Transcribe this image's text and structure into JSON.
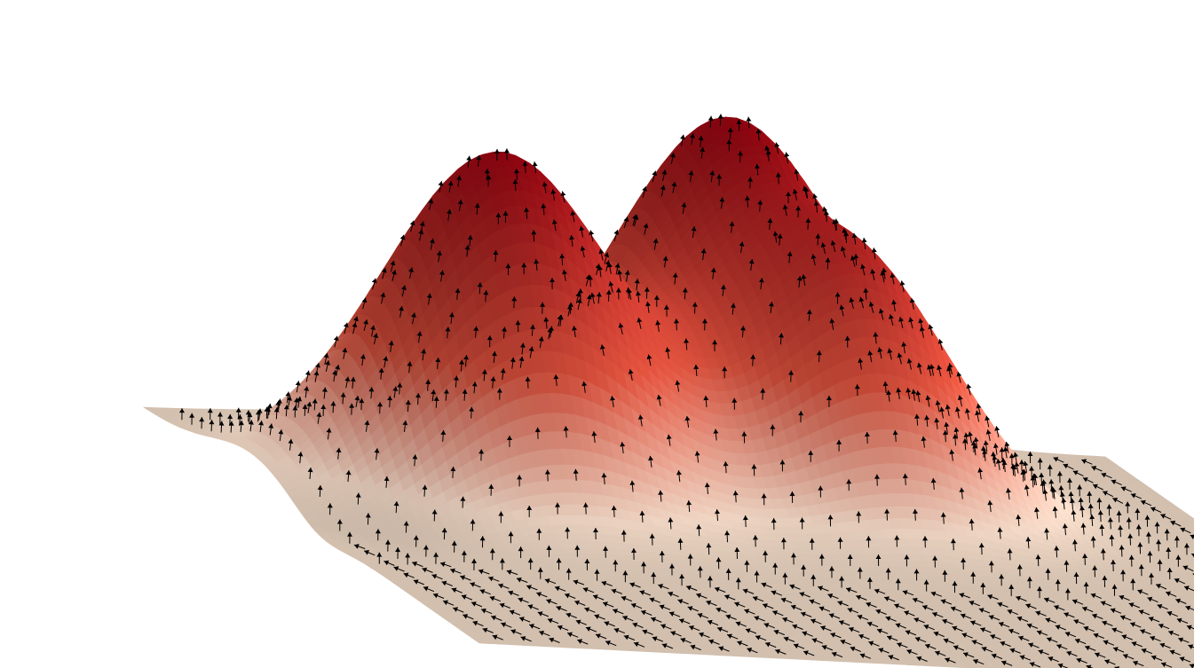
{
  "scene": {
    "kind": "surface-plot-3d",
    "background_color": "#ffffff",
    "surface": {
      "base_color": "#d2bfae",
      "low_color": "#f0d6c4",
      "mid_color": "#d9503c",
      "high_color": "#8c0510",
      "grid_lines": false
    },
    "peaks": [
      {
        "name": "left-peak",
        "relative_height": 1.0
      },
      {
        "name": "back-peak",
        "relative_height": 0.95
      },
      {
        "name": "front-right-peak",
        "relative_height": 0.7
      }
    ],
    "vector_field": {
      "kind": "gradient-arrows",
      "arrow_color": "#000000"
    }
  }
}
